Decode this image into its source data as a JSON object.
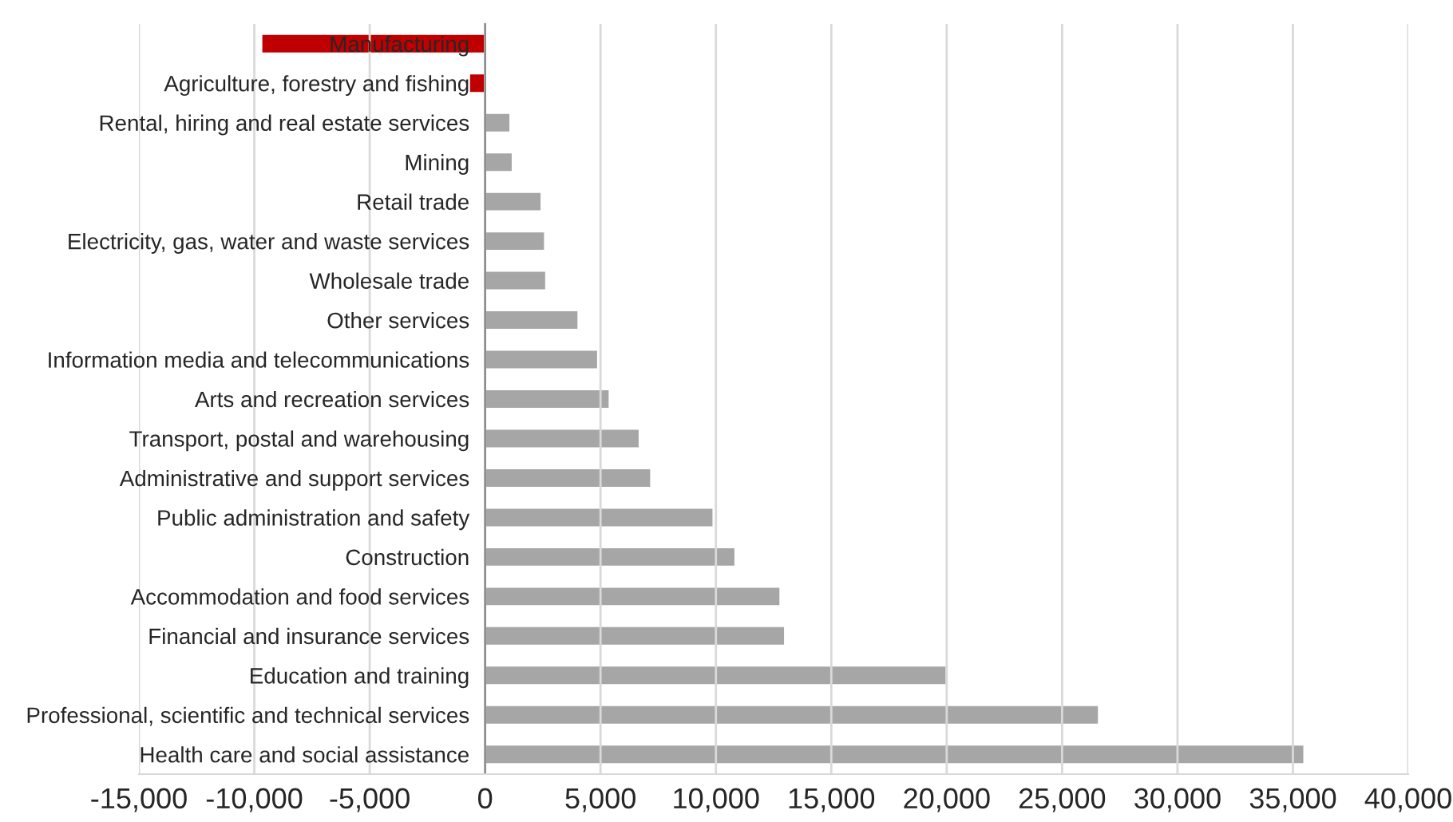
{
  "chart_data": {
    "type": "bar",
    "orientation": "horizontal",
    "categories": [
      "Manufacturing",
      "Agriculture, forestry and fishing",
      "Rental, hiring and real estate services",
      "Mining",
      "Retail trade",
      "Electricity, gas, water and waste services",
      "Wholesale trade",
      "Other services",
      "Information media and telecommunications",
      "Arts and recreation services",
      "Transport, postal and warehousing",
      "Administrative and support services",
      "Public administration and safety",
      "Construction",
      "Accommodation and food services",
      "Financial and insurance services",
      "Education and training",
      "Professional, scientific and technical services",
      "Health care and social assistance"
    ],
    "values": [
      -9700,
      -700,
      1100,
      1200,
      2450,
      2600,
      2650,
      4050,
      4900,
      5400,
      6700,
      7200,
      9900,
      10850,
      12800,
      13000,
      20000,
      26600,
      35500
    ],
    "colors": [
      "#c00000",
      "#c00000",
      "#a6a6a6",
      "#a6a6a6",
      "#a6a6a6",
      "#a6a6a6",
      "#a6a6a6",
      "#a6a6a6",
      "#a6a6a6",
      "#a6a6a6",
      "#a6a6a6",
      "#a6a6a6",
      "#a6a6a6",
      "#a6a6a6",
      "#a6a6a6",
      "#a6a6a6",
      "#a6a6a6",
      "#a6a6a6",
      "#a6a6a6"
    ],
    "xlim": [
      -15000,
      40000
    ],
    "xticks": [
      {
        "value": -15000,
        "label": "-15,000"
      },
      {
        "value": -10000,
        "label": "-10,000"
      },
      {
        "value": -5000,
        "label": "-5,000"
      },
      0,
      {
        "value": 5000,
        "label": "5,000"
      },
      {
        "value": 10000,
        "label": "10,000"
      },
      {
        "value": 15000,
        "label": "15,000"
      },
      {
        "value": 20000,
        "label": "20,000"
      },
      {
        "value": 25000,
        "label": "25,000"
      },
      {
        "value": 30000,
        "label": "30,000"
      },
      {
        "value": 35000,
        "label": "35,000"
      },
      {
        "value": 40000,
        "label": "40,000"
      }
    ],
    "grid": "x",
    "legend": false
  }
}
